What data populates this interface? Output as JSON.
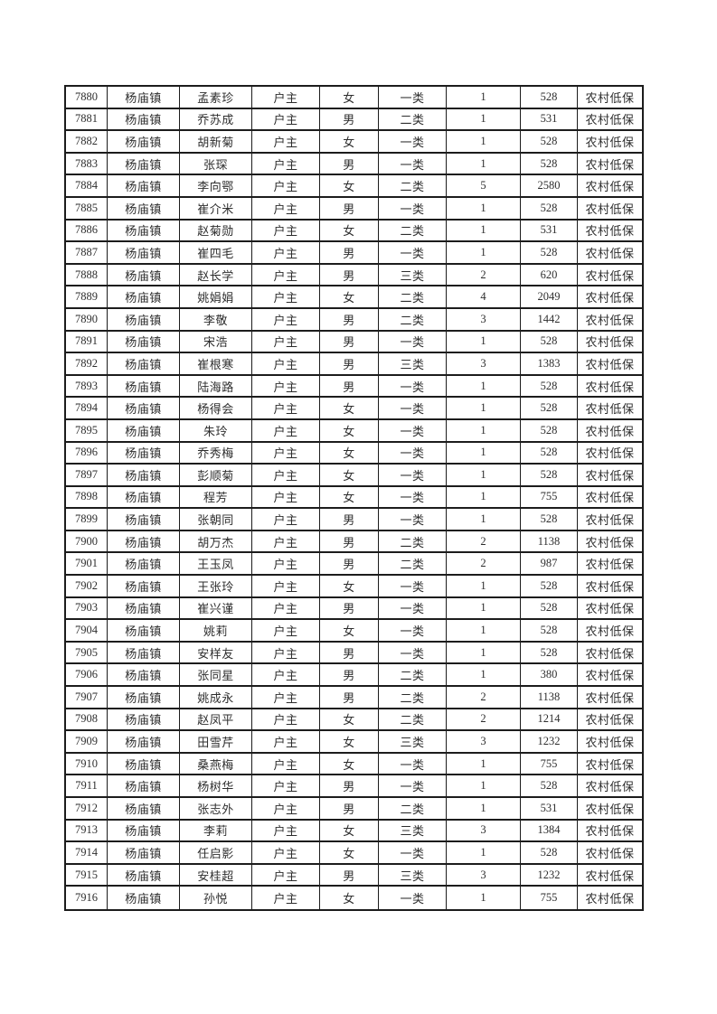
{
  "document": {
    "description": "scanned-style subsistence allowance roster table page, no header row visible",
    "colors": {
      "page_background": "#ffffff",
      "table_border": "#1c1c1c",
      "text": "#2e2e2e"
    }
  },
  "table": {
    "column_keys": [
      "serial",
      "town",
      "name",
      "relation",
      "gender",
      "category",
      "person_count",
      "amount",
      "benefit_type"
    ],
    "column_cell_names": [
      "cell-serial-number",
      "cell-town",
      "cell-name",
      "cell-relation",
      "cell-gender",
      "cell-category",
      "cell-person-count",
      "cell-amount",
      "cell-benefit-type"
    ],
    "numeric_columns": [
      0,
      6,
      7
    ],
    "rows": [
      [
        "7880",
        "杨庙镇",
        "孟素珍",
        "户主",
        "女",
        "一类",
        "1",
        "528",
        "农村低保"
      ],
      [
        "7881",
        "杨庙镇",
        "乔苏成",
        "户主",
        "男",
        "二类",
        "1",
        "531",
        "农村低保"
      ],
      [
        "7882",
        "杨庙镇",
        "胡新菊",
        "户主",
        "女",
        "一类",
        "1",
        "528",
        "农村低保"
      ],
      [
        "7883",
        "杨庙镇",
        "张琛",
        "户主",
        "男",
        "一类",
        "1",
        "528",
        "农村低保"
      ],
      [
        "7884",
        "杨庙镇",
        "李向鄂",
        "户主",
        "女",
        "二类",
        "5",
        "2580",
        "农村低保"
      ],
      [
        "7885",
        "杨庙镇",
        "崔介米",
        "户主",
        "男",
        "一类",
        "1",
        "528",
        "农村低保"
      ],
      [
        "7886",
        "杨庙镇",
        "赵菊勋",
        "户主",
        "女",
        "二类",
        "1",
        "531",
        "农村低保"
      ],
      [
        "7887",
        "杨庙镇",
        "崔四毛",
        "户主",
        "男",
        "一类",
        "1",
        "528",
        "农村低保"
      ],
      [
        "7888",
        "杨庙镇",
        "赵长学",
        "户主",
        "男",
        "三类",
        "2",
        "620",
        "农村低保"
      ],
      [
        "7889",
        "杨庙镇",
        "姚娟娟",
        "户主",
        "女",
        "二类",
        "4",
        "2049",
        "农村低保"
      ],
      [
        "7890",
        "杨庙镇",
        "李敬",
        "户主",
        "男",
        "二类",
        "3",
        "1442",
        "农村低保"
      ],
      [
        "7891",
        "杨庙镇",
        "宋浩",
        "户主",
        "男",
        "一类",
        "1",
        "528",
        "农村低保"
      ],
      [
        "7892",
        "杨庙镇",
        "崔根寒",
        "户主",
        "男",
        "三类",
        "3",
        "1383",
        "农村低保"
      ],
      [
        "7893",
        "杨庙镇",
        "陆海路",
        "户主",
        "男",
        "一类",
        "1",
        "528",
        "农村低保"
      ],
      [
        "7894",
        "杨庙镇",
        "杨得会",
        "户主",
        "女",
        "一类",
        "1",
        "528",
        "农村低保"
      ],
      [
        "7895",
        "杨庙镇",
        "朱玲",
        "户主",
        "女",
        "一类",
        "1",
        "528",
        "农村低保"
      ],
      [
        "7896",
        "杨庙镇",
        "乔秀梅",
        "户主",
        "女",
        "一类",
        "1",
        "528",
        "农村低保"
      ],
      [
        "7897",
        "杨庙镇",
        "彭顺菊",
        "户主",
        "女",
        "一类",
        "1",
        "528",
        "农村低保"
      ],
      [
        "7898",
        "杨庙镇",
        "程芳",
        "户主",
        "女",
        "一类",
        "1",
        "755",
        "农村低保"
      ],
      [
        "7899",
        "杨庙镇",
        "张朝同",
        "户主",
        "男",
        "一类",
        "1",
        "528",
        "农村低保"
      ],
      [
        "7900",
        "杨庙镇",
        "胡万杰",
        "户主",
        "男",
        "二类",
        "2",
        "1138",
        "农村低保"
      ],
      [
        "7901",
        "杨庙镇",
        "王玉凤",
        "户主",
        "男",
        "二类",
        "2",
        "987",
        "农村低保"
      ],
      [
        "7902",
        "杨庙镇",
        "王张玲",
        "户主",
        "女",
        "一类",
        "1",
        "528",
        "农村低保"
      ],
      [
        "7903",
        "杨庙镇",
        "崔兴谨",
        "户主",
        "男",
        "一类",
        "1",
        "528",
        "农村低保"
      ],
      [
        "7904",
        "杨庙镇",
        "姚莉",
        "户主",
        "女",
        "一类",
        "1",
        "528",
        "农村低保"
      ],
      [
        "7905",
        "杨庙镇",
        "安样友",
        "户主",
        "男",
        "一类",
        "1",
        "528",
        "农村低保"
      ],
      [
        "7906",
        "杨庙镇",
        "张同星",
        "户主",
        "男",
        "二类",
        "1",
        "380",
        "农村低保"
      ],
      [
        "7907",
        "杨庙镇",
        "姚成永",
        "户主",
        "男",
        "二类",
        "2",
        "1138",
        "农村低保"
      ],
      [
        "7908",
        "杨庙镇",
        "赵凤平",
        "户主",
        "女",
        "二类",
        "2",
        "1214",
        "农村低保"
      ],
      [
        "7909",
        "杨庙镇",
        "田雪芹",
        "户主",
        "女",
        "三类",
        "3",
        "1232",
        "农村低保"
      ],
      [
        "7910",
        "杨庙镇",
        "桑燕梅",
        "户主",
        "女",
        "一类",
        "1",
        "755",
        "农村低保"
      ],
      [
        "7911",
        "杨庙镇",
        "杨树华",
        "户主",
        "男",
        "一类",
        "1",
        "528",
        "农村低保"
      ],
      [
        "7912",
        "杨庙镇",
        "张志外",
        "户主",
        "男",
        "二类",
        "1",
        "531",
        "农村低保"
      ],
      [
        "7913",
        "杨庙镇",
        "李莉",
        "户主",
        "女",
        "三类",
        "3",
        "1384",
        "农村低保"
      ],
      [
        "7914",
        "杨庙镇",
        "任启影",
        "户主",
        "女",
        "一类",
        "1",
        "528",
        "农村低保"
      ],
      [
        "7915",
        "杨庙镇",
        "安桂超",
        "户主",
        "男",
        "三类",
        "3",
        "1232",
        "农村低保"
      ],
      [
        "7916",
        "杨庙镇",
        "孙悦",
        "户主",
        "女",
        "一类",
        "1",
        "755",
        "农村低保"
      ]
    ]
  }
}
